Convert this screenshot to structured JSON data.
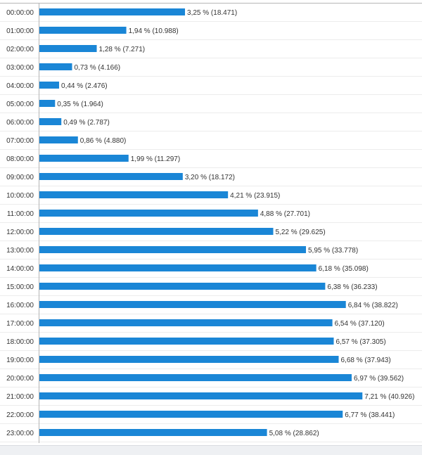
{
  "chart_data": {
    "type": "bar",
    "orientation": "horizontal",
    "title": "",
    "xlabel": "",
    "ylabel": "",
    "bar_color": "#1a86d6",
    "categories": [
      "00:00:00",
      "01:00:00",
      "02:00:00",
      "03:00:00",
      "04:00:00",
      "05:00:00",
      "06:00:00",
      "07:00:00",
      "08:00:00",
      "09:00:00",
      "10:00:00",
      "11:00:00",
      "12:00:00",
      "13:00:00",
      "14:00:00",
      "15:00:00",
      "16:00:00",
      "17:00:00",
      "18:00:00",
      "19:00:00",
      "20:00:00",
      "21:00:00",
      "22:00:00",
      "23:00:00"
    ],
    "values_percent": [
      3.25,
      1.94,
      1.28,
      0.73,
      0.44,
      0.35,
      0.49,
      0.86,
      1.99,
      3.2,
      4.21,
      4.88,
      5.22,
      5.95,
      6.18,
      6.38,
      6.84,
      6.54,
      6.57,
      6.68,
      6.97,
      7.21,
      6.77,
      5.08
    ],
    "counts": [
      18471,
      10988,
      7271,
      4166,
      2476,
      1964,
      2787,
      4880,
      11297,
      18172,
      23915,
      27701,
      29625,
      33778,
      35098,
      36233,
      38822,
      37120,
      37305,
      37943,
      39562,
      40926,
      38441,
      28862
    ],
    "data_labels": [
      "3,25 % (18.471)",
      "1,94 % (10.988)",
      "1,28 % (7.271)",
      "0,73 % (4.166)",
      "0,44 % (2.476)",
      "0,35 % (1.964)",
      "0,49 % (2.787)",
      "0,86 % (4.880)",
      "1,99 % (11.297)",
      "3,20 % (18.172)",
      "4,21 % (23.915)",
      "4,88 % (27.701)",
      "5,22 % (29.625)",
      "5,95 % (33.778)",
      "6,18 % (35.098)",
      "6,38 % (36.233)",
      "6,84 % (38.822)",
      "6,54 % (37.120)",
      "6,57 % (37.305)",
      "6,68 % (37.943)",
      "6,97 % (39.562)",
      "7,21 % (40.926)",
      "6,77 % (38.441)",
      "5,08 % (28.862)"
    ],
    "xlim": [
      0,
      8.5
    ],
    "grid": "horizontal-row-separators",
    "legend": "none"
  }
}
